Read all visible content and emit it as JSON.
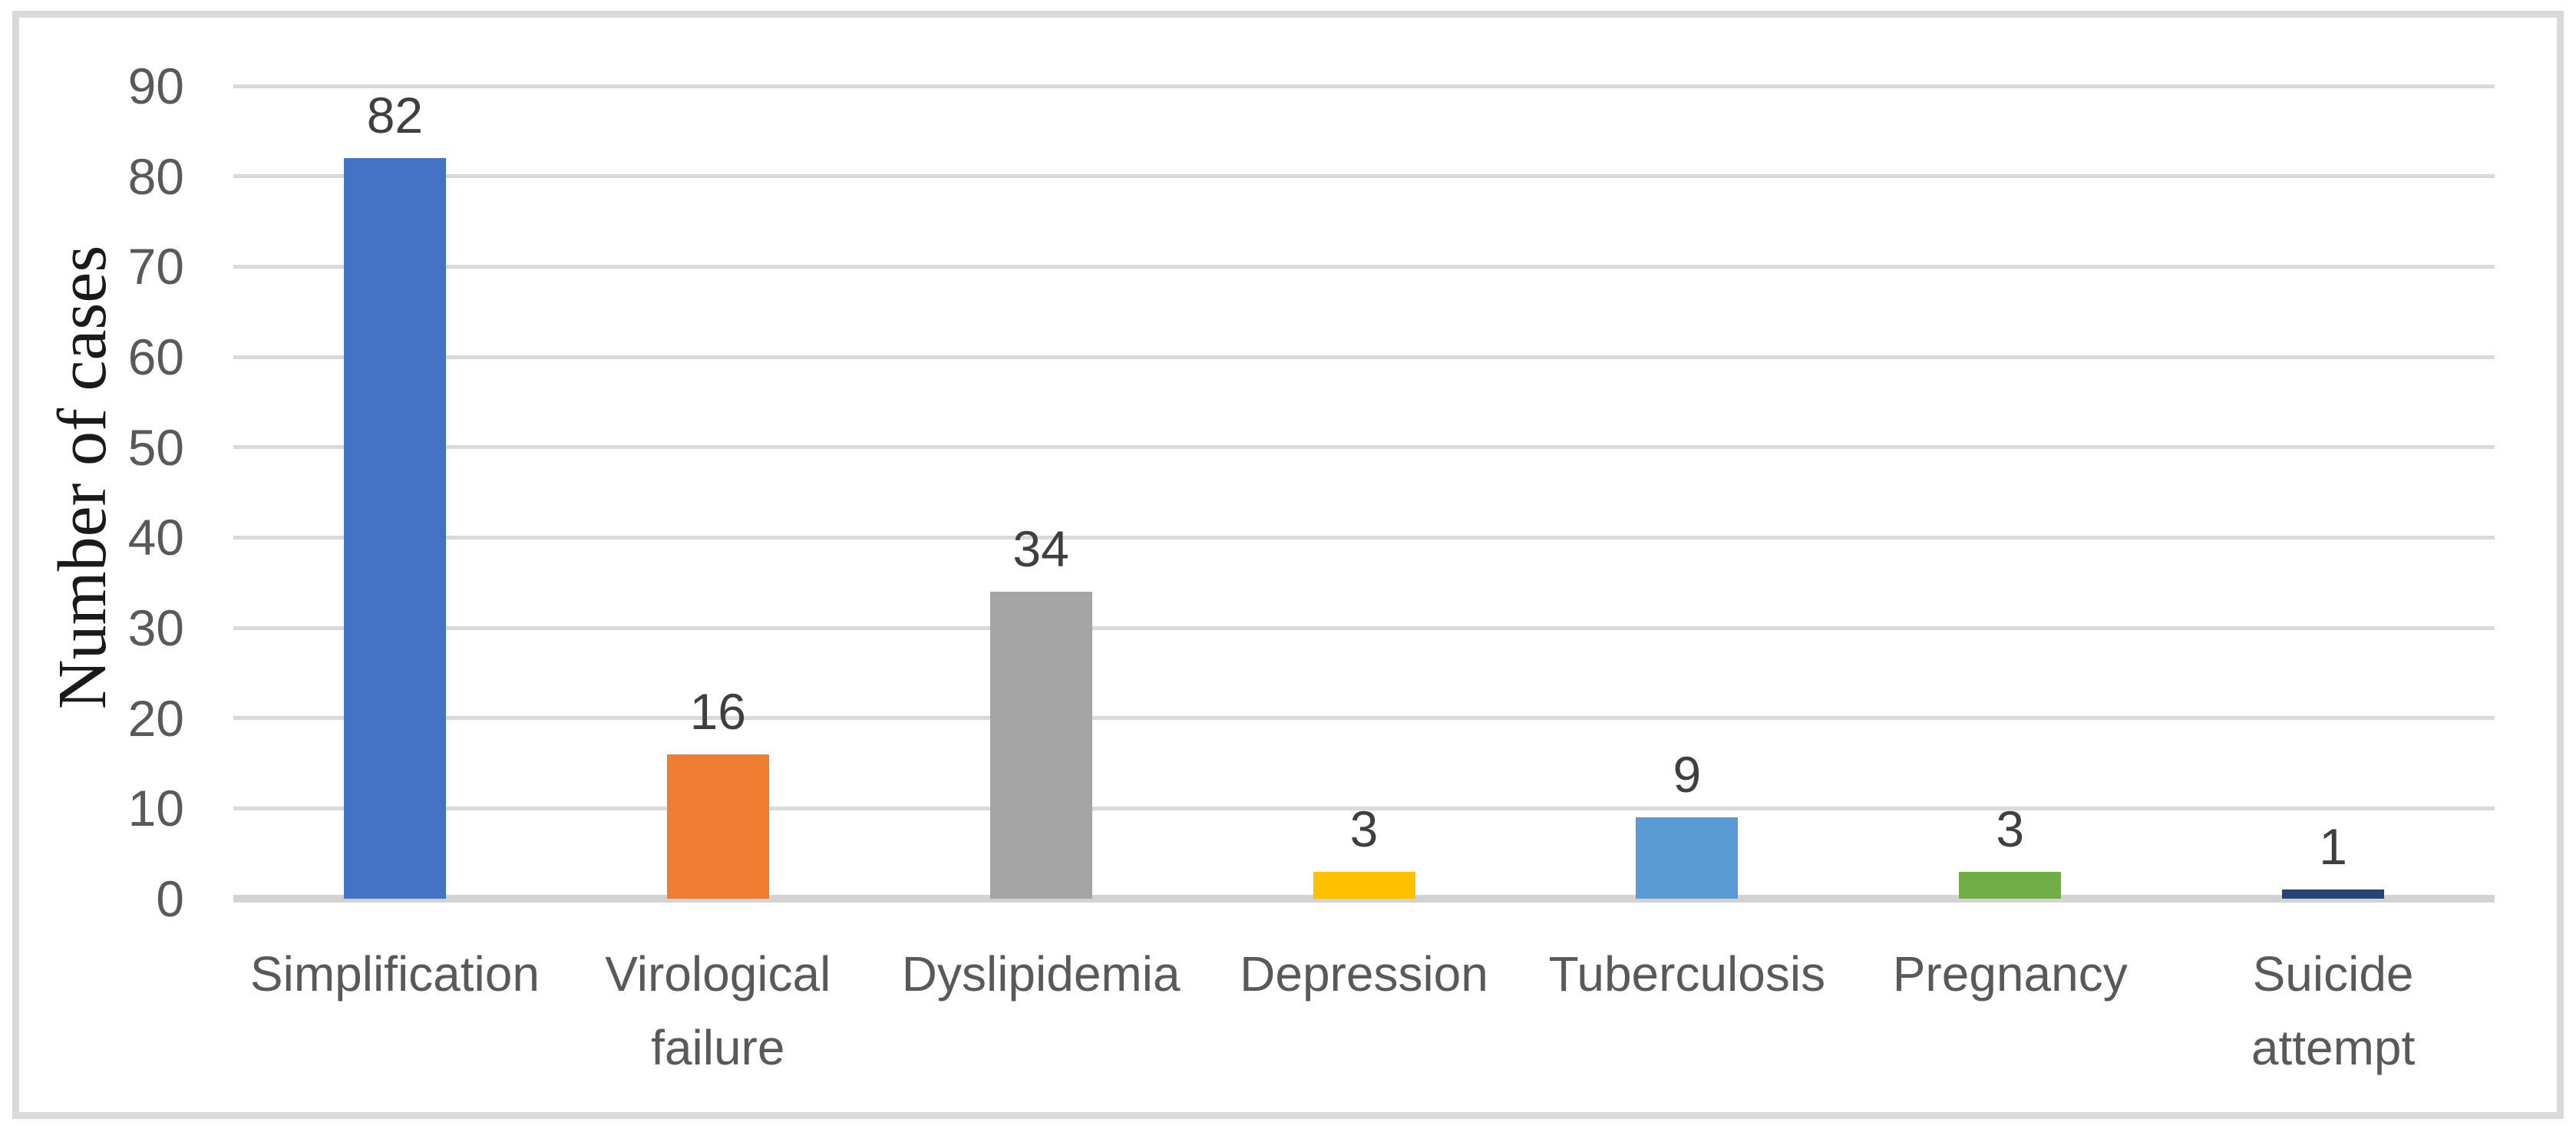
{
  "figure": {
    "background": "#ffffff",
    "frame_border_color": "#d9d9d9"
  },
  "chart_data": {
    "type": "bar",
    "title": "",
    "xlabel": "",
    "ylabel": "Number of cases",
    "categories": [
      "Simplification",
      "Virological failure",
      "Dyslipidemia",
      "Depression",
      "Tuberculosis",
      "Pregnancy",
      "Suicide attempt"
    ],
    "category_label_lines": [
      [
        "Simplification"
      ],
      [
        "Virological",
        "failure"
      ],
      [
        "Dyslipidemia"
      ],
      [
        "Depression"
      ],
      [
        "Tuberculosis"
      ],
      [
        "Pregnancy"
      ],
      [
        "Suicide",
        "attempt"
      ]
    ],
    "values": [
      82,
      16,
      34,
      3,
      9,
      3,
      1
    ],
    "data_labels": [
      "82",
      "16",
      "34",
      "3",
      "9",
      "3",
      "1"
    ],
    "bar_colors": [
      "#4472c4",
      "#ed7d31",
      "#a5a5a5",
      "#ffc000",
      "#5b9bd5",
      "#70ad47",
      "#264478"
    ],
    "ylim": [
      0,
      90
    ],
    "yticks": [
      0,
      10,
      20,
      30,
      40,
      50,
      60,
      70,
      80,
      90
    ],
    "grid": "horizontal",
    "gridline_color": "#d9d9d9",
    "axis_line_color": "#d2d2d2",
    "tick_label_color": "#595959",
    "category_label_color": "#595959",
    "data_label_color": "#3f3f3f",
    "ylabel_color": "#1a1a1a",
    "legend": "none"
  }
}
